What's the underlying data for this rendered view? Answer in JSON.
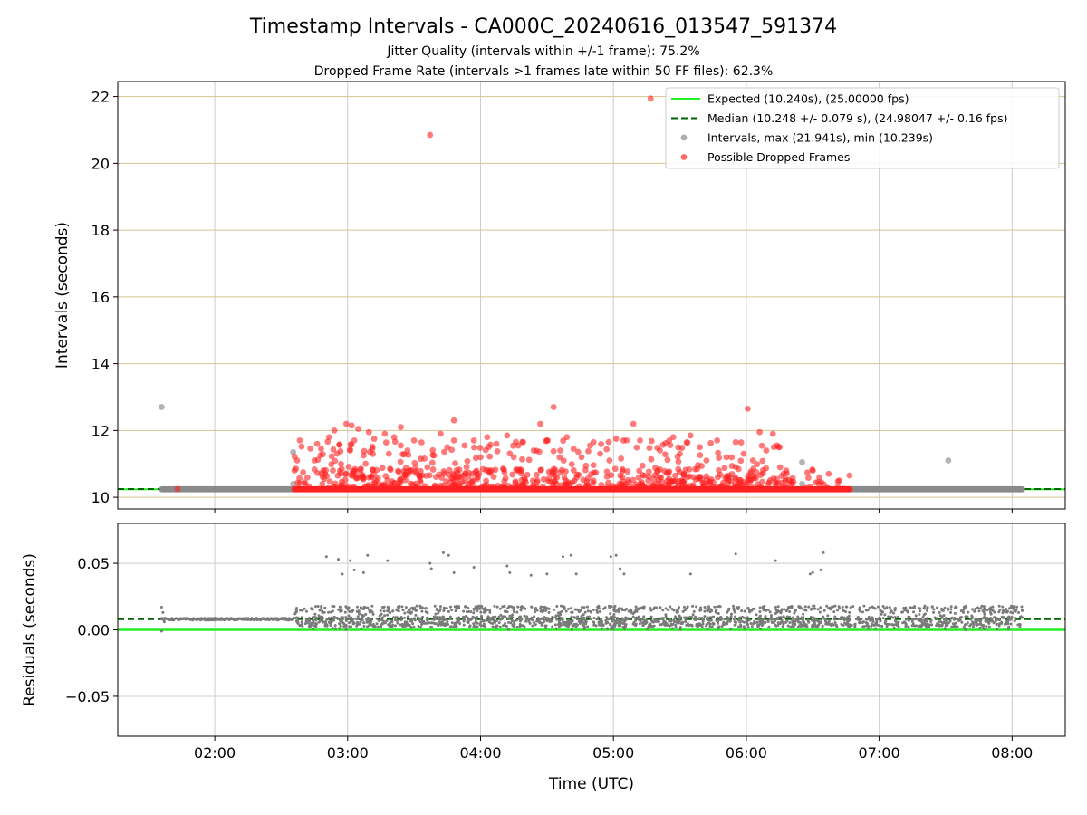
{
  "title": "Timestamp Intervals - CA000C_20240616_013547_591374",
  "subtitle1": "Jitter Quality (intervals within +/-1 frame): 75.2%",
  "subtitle2": "Dropped Frame Rate (intervals >1 frames late within 50 FF files): 62.3%",
  "chart_data": [
    {
      "type": "scatter",
      "name": "intervals",
      "ylabel": "Intervals (seconds)",
      "xlabel": "",
      "xlim": [
        1.27,
        8.4
      ],
      "ylim": [
        9.65,
        22.45
      ],
      "x_ticks": [
        2,
        3,
        4,
        5,
        6,
        7,
        8
      ],
      "x_tick_labels": [
        "02:00",
        "03:00",
        "04:00",
        "05:00",
        "06:00",
        "07:00",
        "08:00"
      ],
      "y_ticks": [
        10,
        12,
        14,
        16,
        18,
        20,
        22
      ],
      "y_tick_labels": [
        "10",
        "12",
        "14",
        "16",
        "18",
        "20",
        "22"
      ],
      "x_grid": true,
      "y_grid_color": "#d4c48c",
      "legend_position": "upper-right",
      "expected_value": 10.24,
      "median_value": 10.248,
      "legend": [
        {
          "label": "Expected (10.240s), (25.00000 fps)",
          "kind": "line",
          "color": "#22ee22"
        },
        {
          "label": "Median (10.248 +/- 0.079 s), (24.98047 +/- 0.16 fps)",
          "kind": "dashed",
          "color": "#006400"
        },
        {
          "label": "Intervals, max (21.941s), min (10.239s)",
          "kind": "dot",
          "color": "#9a9a9a"
        },
        {
          "label": "Possible Dropped Frames",
          "kind": "dot",
          "color": "#ff4444"
        }
      ],
      "interval_series": {
        "name": "Intervals, max (21.941s), min (10.239s)",
        "bands": [
          [
            1.6,
            2.6,
            10.24
          ],
          [
            6.75,
            8.08,
            10.24
          ]
        ],
        "outliers": [
          [
            1.6,
            12.7
          ],
          [
            2.59,
            11.35
          ],
          [
            2.59,
            10.4
          ],
          [
            5.88,
            10.6
          ],
          [
            6.42,
            11.05
          ],
          [
            6.42,
            10.4
          ],
          [
            7.52,
            11.1
          ]
        ]
      },
      "dropped_series": {
        "name": "Possible Dropped Frames",
        "band": [
          2.6,
          6.78,
          10.24
        ],
        "points": [
          [
            1.72,
            10.25
          ],
          [
            2.6,
            10.8
          ],
          [
            2.62,
            11.1
          ],
          [
            2.64,
            11.7
          ],
          [
            2.75,
            11.1
          ],
          [
            2.77,
            11.6
          ],
          [
            2.8,
            11.45
          ],
          [
            2.86,
            11.8
          ],
          [
            2.9,
            12.0
          ],
          [
            2.92,
            11.3
          ],
          [
            2.95,
            11.0
          ],
          [
            2.99,
            12.2
          ],
          [
            3.03,
            12.15
          ],
          [
            3.05,
            11.7
          ],
          [
            3.08,
            12.05
          ],
          [
            3.12,
            11.25
          ],
          [
            3.16,
            11.95
          ],
          [
            3.2,
            11.75
          ],
          [
            3.28,
            11.9
          ],
          [
            3.31,
            11.3
          ],
          [
            3.35,
            11.8
          ],
          [
            3.4,
            11.55
          ],
          [
            3.4,
            12.1
          ],
          [
            3.45,
            11.4
          ],
          [
            3.5,
            11.7
          ],
          [
            3.55,
            11.15
          ],
          [
            3.6,
            10.9
          ],
          [
            3.62,
            20.85
          ],
          [
            3.65,
            11.25
          ],
          [
            3.7,
            11.9
          ],
          [
            3.75,
            11.5
          ],
          [
            3.8,
            11.7
          ],
          [
            3.8,
            12.3
          ],
          [
            3.88,
            11.55
          ],
          [
            3.95,
            11.7
          ],
          [
            4.0,
            11.2
          ],
          [
            4.05,
            11.8
          ],
          [
            4.12,
            11.6
          ],
          [
            4.2,
            11.85
          ],
          [
            4.25,
            11.2
          ],
          [
            4.32,
            11.65
          ],
          [
            4.4,
            11.4
          ],
          [
            4.45,
            12.2
          ],
          [
            4.5,
            11.7
          ],
          [
            4.55,
            12.7
          ],
          [
            4.6,
            11.4
          ],
          [
            4.65,
            11.8
          ],
          [
            4.7,
            11.45
          ],
          [
            4.76,
            11.2
          ],
          [
            4.85,
            11.65
          ],
          [
            4.9,
            11.3
          ],
          [
            4.97,
            11.1
          ],
          [
            5.02,
            11.75
          ],
          [
            5.1,
            11.7
          ],
          [
            5.15,
            12.2
          ],
          [
            5.2,
            11.7
          ],
          [
            5.28,
            21.94
          ],
          [
            5.35,
            11.4
          ],
          [
            5.45,
            11.8
          ],
          [
            5.5,
            11.3
          ],
          [
            5.58,
            11.85
          ],
          [
            5.65,
            11.5
          ],
          [
            5.7,
            11.1
          ],
          [
            5.78,
            11.7
          ],
          [
            5.85,
            11.2
          ],
          [
            5.92,
            11.65
          ],
          [
            5.98,
            11.3
          ],
          [
            6.01,
            12.65
          ],
          [
            6.05,
            11.1
          ],
          [
            6.1,
            11.95
          ],
          [
            6.15,
            11.4
          ],
          [
            6.2,
            11.9
          ],
          [
            6.25,
            11.5
          ],
          [
            6.3,
            10.8
          ],
          [
            6.5,
            10.8
          ],
          [
            6.55,
            10.6
          ],
          [
            6.62,
            10.7
          ],
          [
            6.7,
            10.5
          ]
        ]
      }
    },
    {
      "type": "scatter",
      "name": "residuals",
      "ylabel": "Residuals (seconds)",
      "xlabel": "Time (UTC)",
      "xlim": [
        1.27,
        8.4
      ],
      "ylim": [
        -0.08,
        0.08
      ],
      "x_ticks": [
        2,
        3,
        4,
        5,
        6,
        7,
        8
      ],
      "x_tick_labels": [
        "02:00",
        "03:00",
        "04:00",
        "05:00",
        "06:00",
        "07:00",
        "08:00"
      ],
      "y_ticks": [
        0.05,
        0.0,
        -0.05
      ],
      "y_tick_labels": [
        "0.05",
        "0.00",
        "−0.05"
      ],
      "grid": true,
      "expected_value": 0.0,
      "median_value": 0.008,
      "point_color": "#7a7a7a",
      "flat_segment": [
        1.6,
        2.6,
        0.008
      ],
      "spread_range": [
        2.6,
        8.08
      ],
      "upper_points": [
        [
          2.84,
          0.055
        ],
        [
          2.93,
          0.053
        ],
        [
          2.96,
          0.042
        ],
        [
          3.02,
          0.052
        ],
        [
          3.05,
          0.045
        ],
        [
          3.12,
          0.043
        ],
        [
          3.15,
          0.056
        ],
        [
          3.3,
          0.052
        ],
        [
          3.62,
          0.05
        ],
        [
          3.63,
          0.046
        ],
        [
          3.72,
          0.058
        ],
        [
          3.76,
          0.056
        ],
        [
          3.8,
          0.043
        ],
        [
          3.95,
          0.047
        ],
        [
          4.2,
          0.048
        ],
        [
          4.22,
          0.043
        ],
        [
          4.38,
          0.041
        ],
        [
          4.5,
          0.042
        ],
        [
          4.62,
          0.055
        ],
        [
          4.68,
          0.056
        ],
        [
          4.72,
          0.042
        ],
        [
          4.98,
          0.055
        ],
        [
          5.02,
          0.056
        ],
        [
          5.05,
          0.046
        ],
        [
          5.08,
          0.042
        ],
        [
          5.58,
          0.042
        ],
        [
          5.92,
          0.057
        ],
        [
          6.22,
          0.052
        ],
        [
          6.48,
          0.042
        ],
        [
          6.5,
          0.043
        ],
        [
          6.56,
          0.045
        ],
        [
          6.58,
          0.058
        ]
      ]
    }
  ]
}
